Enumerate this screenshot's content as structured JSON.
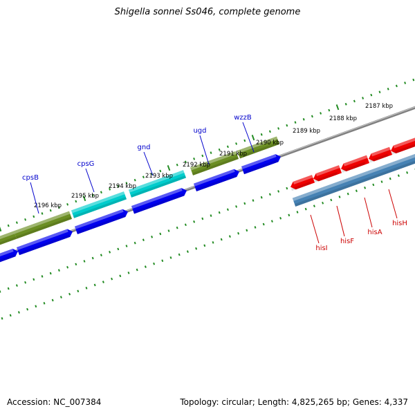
{
  "title": "Shigella sonnei Ss046, complete genome",
  "accession": "Accession: NC_007384",
  "summary": "Topology: circular; Length: 4,825,265 bp; Genes: 4,337",
  "colors": {
    "forward_gene": "#0000ee",
    "reverse_gene": "#ee0000",
    "cds_olive": "#6b8e23",
    "cds_cyan": "#00cccc",
    "cds_steel": "#4682b4",
    "backbone": "#808080",
    "tick": "#228b22",
    "label_blue": "#0000cc",
    "label_red": "#cc0000"
  },
  "scale_labels": [
    {
      "text": "2187 kbp"
    },
    {
      "text": "2188 kbp"
    },
    {
      "text": "2189 kbp"
    },
    {
      "text": "2190 kbp"
    },
    {
      "text": "2191 kbp"
    },
    {
      "text": "2192 kbp"
    },
    {
      "text": "2193 kbp"
    },
    {
      "text": "2194 kbp"
    },
    {
      "text": "2195 kbp"
    },
    {
      "text": "2196 kbp"
    }
  ],
  "forward_gene_labels": [
    "wzzB",
    "ugd",
    "gnd",
    "cpsG",
    "cpsB"
  ],
  "reverse_gene_labels": [
    "hisH",
    "hisA",
    "hisF",
    "hisI"
  ]
}
